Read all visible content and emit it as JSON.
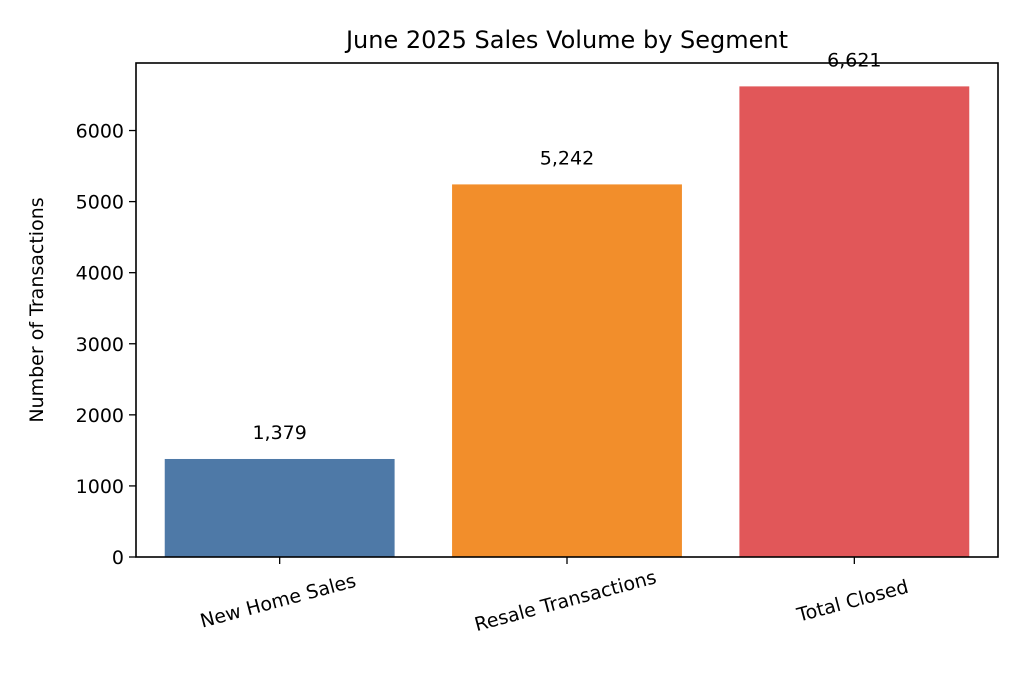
{
  "chart_data": {
    "type": "bar",
    "title": "June 2025 Sales Volume by Segment",
    "xlabel": "",
    "ylabel": "Number of Transactions",
    "categories": [
      "New Home Sales",
      "Resale Transactions",
      "Total Closed"
    ],
    "values": [
      1379,
      5242,
      6621
    ],
    "value_labels": [
      "1,379",
      "5,242",
      "6,621"
    ],
    "colors": [
      "#4e79a7",
      "#f28e2b",
      "#e15759"
    ],
    "ylim": [
      0,
      6950
    ],
    "yticks": [
      0,
      1000,
      2000,
      3000,
      4000,
      5000,
      6000
    ],
    "grid": false,
    "legend": "none"
  }
}
